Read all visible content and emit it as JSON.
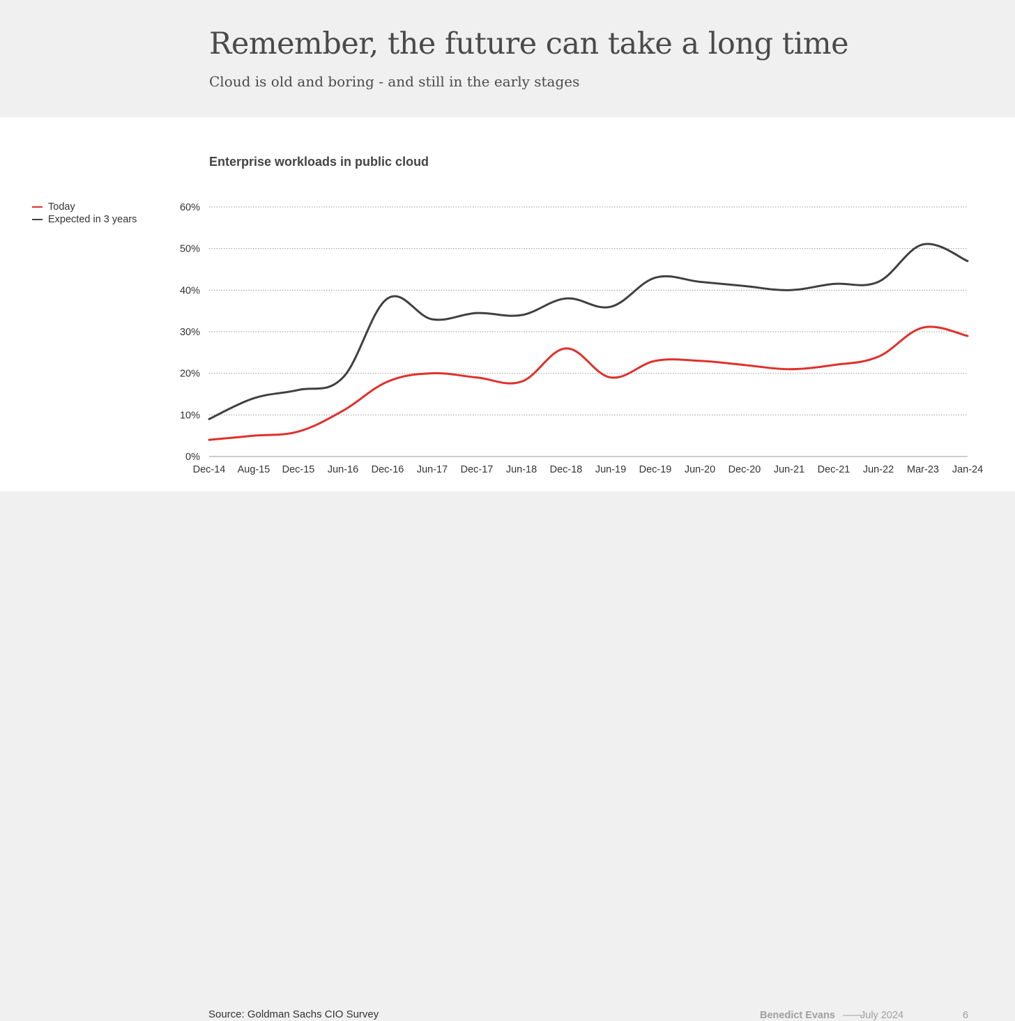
{
  "slide": {
    "title": "Remember, the future can take a long time",
    "subtitle": "Cloud is old and boring - and still in the early stages"
  },
  "footer": {
    "source": "Source: Goldman Sachs CIO Survey",
    "author": "Benedict Evans",
    "separator": "——",
    "date": "July 2024",
    "page": "6"
  },
  "colors": {
    "today": "#e0302a",
    "expected": "#404040",
    "grid": "#9a9a9a",
    "axis": "#9a9a9a"
  },
  "chart_data": {
    "type": "line",
    "title": "Enterprise workloads in public cloud",
    "xlabel": "",
    "ylabel": "",
    "categories": [
      "Dec-14",
      "Aug-15",
      "Dec-15",
      "Jun-16",
      "Dec-16",
      "Jun-17",
      "Dec-17",
      "Jun-18",
      "Dec-18",
      "Jun-19",
      "Dec-19",
      "Jun-20",
      "Dec-20",
      "Jun-21",
      "Dec-21",
      "Jun-22",
      "Mar-23",
      "Jan-24"
    ],
    "ylim": [
      0,
      60
    ],
    "yticks": [
      0,
      10,
      20,
      30,
      40,
      50,
      60
    ],
    "ytick_labels": [
      "0%",
      "10%",
      "20%",
      "30%",
      "40%",
      "50%",
      "60%"
    ],
    "grid": "horizontal dotted",
    "legend_position": "left",
    "series": [
      {
        "name": "Today",
        "color_key": "today",
        "values": [
          4,
          5,
          6,
          11,
          18,
          20,
          19,
          18,
          26,
          19,
          23,
          23,
          22,
          21,
          22,
          24,
          31,
          29
        ]
      },
      {
        "name": "Expected in 3 years",
        "color_key": "expected",
        "values": [
          9,
          14,
          16,
          19,
          38,
          33,
          34.5,
          34,
          38,
          36,
          43,
          42,
          41,
          40,
          41.5,
          42,
          51,
          47
        ]
      }
    ]
  }
}
